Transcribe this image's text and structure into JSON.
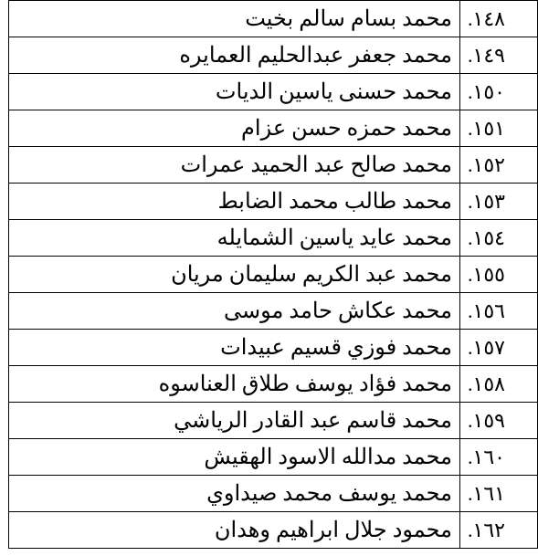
{
  "rows": [
    {
      "index": ".١٤٨",
      "name": "محمد بسام سالم بخيت"
    },
    {
      "index": ".١٤٩",
      "name": "محمد جعفر عبدالحليم العمايره"
    },
    {
      "index": ".١٥٠",
      "name": "محمد حسنى ياسين الديات"
    },
    {
      "index": ".١٥١",
      "name": "محمد حمزه حسن عزام"
    },
    {
      "index": ".١٥٢",
      "name": "محمد صالح عبد الحميد عمرات"
    },
    {
      "index": ".١٥٣",
      "name": "محمد طالب محمد الضابط"
    },
    {
      "index": ".١٥٤",
      "name": "محمد عايد ياسين الشمايله"
    },
    {
      "index": ".١٥٥",
      "name": "محمد عبد الكريم سليمان مريان"
    },
    {
      "index": ".١٥٦",
      "name": "محمد عكاش حامد موسى"
    },
    {
      "index": ".١٥٧",
      "name": "محمد فوزي قسيم عبيدات"
    },
    {
      "index": ".١٥٨",
      "name": "محمد فؤاد يوسف طلاق العناسوه"
    },
    {
      "index": ".١٥٩",
      "name": "محمد قاسم عبد القادر الرياشي"
    },
    {
      "index": ".١٦٠",
      "name": "محمد مدالله الاسود الهقيش"
    },
    {
      "index": ".١٦١",
      "name": "محمد يوسف محمد صيداوي"
    },
    {
      "index": ".١٦٢",
      "name": "محمود جلال ابراهيم وهدان"
    }
  ]
}
